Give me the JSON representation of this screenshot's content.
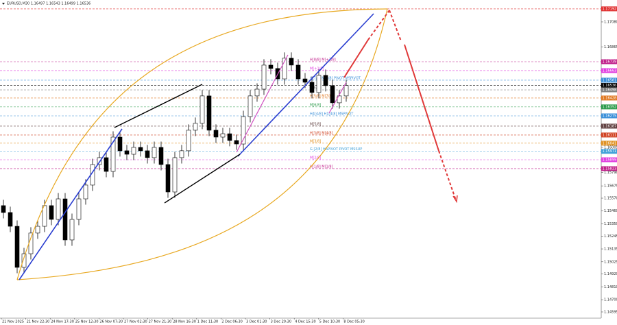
{
  "chart_data": {
    "type": "candlestick",
    "title": "EURUSD,M30  1.16497 1.16543 1.16499 1.16536",
    "categories": [
      "21 Nov 2025",
      "21 Nov 22:30",
      "24 Nov 17:30",
      "25 Nov 12:30",
      "26 Nov 07:30",
      "27 Nov 02:30",
      "27 Nov 21:30",
      "28 Nov 16:30",
      "1 Dec 11:30",
      "2 Dec 06:30",
      "3 Dec 01:30",
      "3 Dec 20:30",
      "4 Dec 15:30",
      "5 Dec 10:30",
      "8 Dec 05:30"
    ],
    "open": [
      1.15506,
      1.15447,
      1.15329,
      1.14977,
      1.15094,
      1.15271,
      1.15329,
      1.15506,
      1.15388,
      1.15564,
      1.15212,
      1.15388,
      1.15564,
      1.15682,
      1.15858,
      1.15917,
      1.15799,
      1.16093,
      1.15976,
      1.15946,
      1.16005,
      1.15976,
      1.15917,
      1.16005,
      1.15858,
      1.15623,
      1.15917,
      1.15976,
      1.16152,
      1.16211,
      1.16446,
      1.16152,
      1.16093,
      1.16122,
      1.16064,
      1.16034,
      1.16269,
      1.16446,
      1.16504,
      1.1671,
      1.16681,
      1.16592,
      1.16769,
      1.1671,
      1.16592,
      1.16563,
      1.16475,
      1.16622,
      1.16534,
      1.16387,
      1.16446
    ],
    "high": [
      1.15556,
      1.15497,
      1.15379,
      1.15144,
      1.15321,
      1.15379,
      1.15556,
      1.15556,
      1.15614,
      1.15614,
      1.15438,
      1.15614,
      1.15732,
      1.15908,
      1.15967,
      1.15967,
      1.16143,
      1.16143,
      1.16026,
      1.16055,
      1.16055,
      1.16026,
      1.16055,
      1.16055,
      1.15908,
      1.15967,
      1.16026,
      1.16202,
      1.16261,
      1.16496,
      1.16496,
      1.16202,
      1.16172,
      1.16172,
      1.16114,
      1.16319,
      1.16496,
      1.16554,
      1.1676,
      1.1676,
      1.16731,
      1.16819,
      1.16819,
      1.1676,
      1.16642,
      1.16613,
      1.16672,
      1.16672,
      1.16584,
      1.16496,
      1.16586
    ],
    "low": [
      1.15397,
      1.15279,
      1.14927,
      1.14927,
      1.15044,
      1.15221,
      1.15279,
      1.15338,
      1.15338,
      1.15162,
      1.15162,
      1.15338,
      1.15514,
      1.15632,
      1.15808,
      1.15749,
      1.15749,
      1.15926,
      1.15896,
      1.15896,
      1.15926,
      1.15867,
      1.15867,
      1.15808,
      1.15573,
      1.15573,
      1.15867,
      1.15926,
      1.16102,
      1.16161,
      1.16102,
      1.16043,
      1.16043,
      1.16014,
      1.15984,
      1.15984,
      1.16219,
      1.16396,
      1.16454,
      1.16631,
      1.16542,
      1.16542,
      1.1666,
      1.16542,
      1.16513,
      1.16425,
      1.16425,
      1.16484,
      1.16337,
      1.16337,
      1.16396
    ],
    "close": [
      1.15447,
      1.15329,
      1.14977,
      1.15094,
      1.15271,
      1.15329,
      1.15506,
      1.15388,
      1.15564,
      1.15212,
      1.15388,
      1.15564,
      1.15682,
      1.15858,
      1.15917,
      1.15799,
      1.16093,
      1.15976,
      1.15946,
      1.16005,
      1.15976,
      1.15917,
      1.16005,
      1.15858,
      1.15623,
      1.15917,
      1.15976,
      1.16152,
      1.16211,
      1.16446,
      1.16152,
      1.16093,
      1.16122,
      1.16064,
      1.16034,
      1.16269,
      1.16446,
      1.16504,
      1.1671,
      1.16681,
      1.16592,
      1.16769,
      1.1671,
      1.16592,
      1.16563,
      1.16475,
      1.16622,
      1.16534,
      1.16387,
      1.16446,
      1.16536
    ],
    "ylim": [
      1.14542,
      1.17209
    ],
    "yticks": [
      {
        "value": 1.1708,
        "label": "1.17080"
      },
      1.16865,
      1.16005,
      {
        "value": 1.1579,
        "label": "1.15790"
      },
      1.15675,
      {
        "value": 1.1557,
        "label": "1.15570"
      },
      {
        "value": 1.1546,
        "label": "1.15460"
      },
      {
        "value": 1.1535,
        "label": "1.15350"
      },
      1.15245,
      1.15135,
      1.15025,
      {
        "value": 1.1492,
        "label": "1.14920"
      },
      {
        "value": 1.1481,
        "label": "1.14810"
      },
      {
        "value": 1.147,
        "label": "1.14700"
      },
      1.14595
    ],
    "levels": [
      {
        "value": 1.17192,
        "color": "#e03030"
      },
      {
        "name": "H[8/8] M[+2/8]",
        "value": 1.16739,
        "color": "#c0208a"
      },
      {
        "name": "M[+1/8]",
        "value": 1.16663,
        "color": "#e040e0"
      },
      {
        "name": "H[7/8] M[8/8] PIVOT MSPIVOT",
        "value": 1.16581,
        "color": "#3a8fd8"
      },
      {
        "value": 1.16536,
        "color": "#000000"
      },
      {
        "name": "H[6/8]",
        "value": 1.16498,
        "color": "#808080"
      },
      {
        "name": "H[5/8] M[7/8]",
        "value": 1.16428,
        "color": "#e07820"
      },
      {
        "name": "M[6/8]",
        "value": 1.16352,
        "color": "#2a9a4a"
      },
      {
        "name": "H4[4/8] H1[4/8] MSPIVOT",
        "value": 1.16275,
        "color": "#3a8fd8"
      },
      {
        "name": "M[5/8]",
        "value": 1.16187,
        "color": "#604040"
      },
      {
        "name": "H[3/8] M[4/8]",
        "value": 1.16111,
        "color": "#d04020"
      },
      {
        "name": "M[3/8]",
        "value": 1.16041,
        "color": "#e09020"
      },
      {
        "name": "G [2/8] HAPIVOT PIVOT MSSUP",
        "value": 1.15971,
        "color": "#40a0d8"
      },
      {
        "name": "M[2/8]",
        "value": 1.15899,
        "color": "#e040e0"
      },
      {
        "name": "H[1/8] M[1/8]",
        "value": 1.15823,
        "color": "#c0208a"
      }
    ]
  }
}
